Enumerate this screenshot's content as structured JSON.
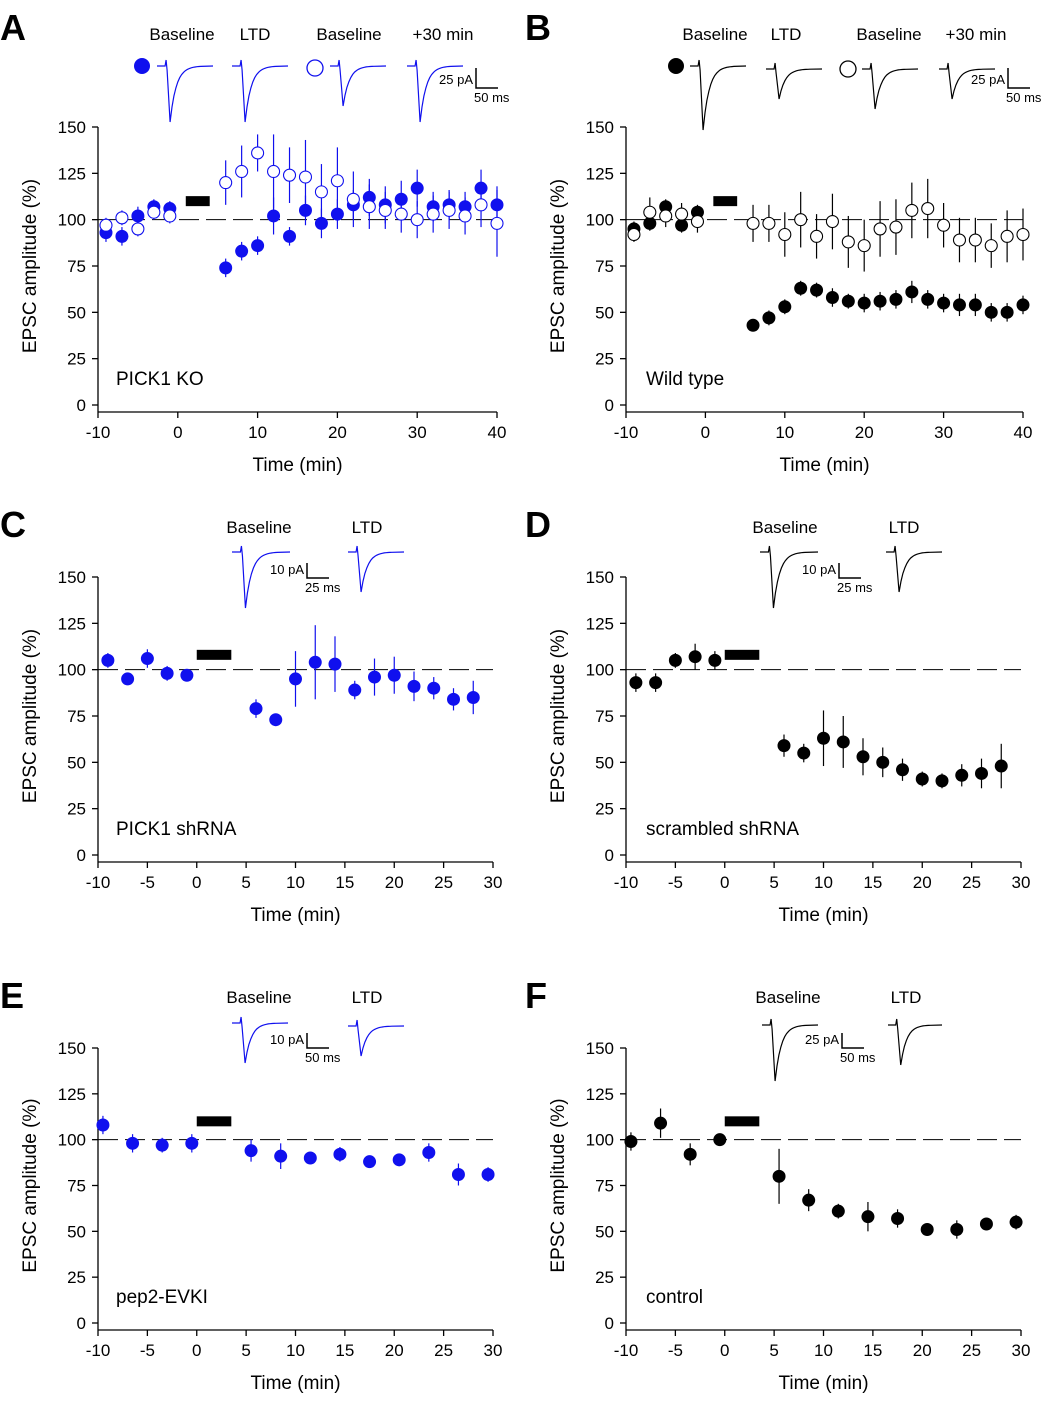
{
  "figure": {
    "y_axis_label": "EPSC amplitude (%)",
    "x_axis_label": "Time (min)"
  },
  "chart_data": [
    {
      "panel_label": "A",
      "type": "scatter",
      "color": "#1010ee",
      "condition_label": "PICK1 KO",
      "xlabel": "Time (min)",
      "ylabel": "EPSC amplitude (%)",
      "xlim": [
        -10,
        40
      ],
      "ylim": [
        0,
        150
      ],
      "xticks": [
        -10,
        0,
        10,
        20,
        30,
        40
      ],
      "yticks": [
        0,
        25,
        50,
        75,
        100,
        125,
        150
      ],
      "baseline_value": 100,
      "induction_bar": [
        1,
        4,
        110
      ],
      "trace_labels": [
        "Baseline",
        "LTD",
        "Baseline",
        "+30 min"
      ],
      "scale_bar": {
        "amplitude": "25 pA",
        "time": "50 ms"
      },
      "series": [
        {
          "name": "filled",
          "marker": "filled",
          "x": [
            -9,
            -7,
            -5,
            -3,
            -1,
            6,
            8,
            10,
            12,
            14,
            16,
            18,
            20,
            22,
            24,
            26,
            28,
            30,
            32,
            34,
            36,
            38,
            40
          ],
          "y": [
            93,
            91,
            102,
            107,
            106,
            74,
            83,
            86,
            102,
            91,
            105,
            98,
            103,
            108,
            112,
            108,
            111,
            117,
            107,
            108,
            107,
            117,
            108
          ],
          "err": [
            5,
            5,
            5,
            4,
            4,
            5,
            5,
            5,
            10,
            5,
            8,
            8,
            8,
            8,
            10,
            10,
            10,
            10,
            8,
            8,
            8,
            10,
            10
          ]
        },
        {
          "name": "open",
          "marker": "open",
          "x": [
            -9,
            -7,
            -5,
            -3,
            -1,
            6,
            8,
            10,
            12,
            14,
            16,
            18,
            20,
            22,
            24,
            26,
            28,
            30,
            32,
            34,
            36,
            38,
            40
          ],
          "y": [
            97,
            101,
            95,
            104,
            102,
            120,
            126,
            136,
            126,
            124,
            123,
            115,
            121,
            111,
            107,
            105,
            103,
            100,
            103,
            105,
            102,
            108,
            98
          ],
          "err": [
            4,
            4,
            4,
            4,
            4,
            12,
            14,
            10,
            20,
            15,
            20,
            15,
            18,
            15,
            12,
            10,
            10,
            10,
            10,
            10,
            10,
            12,
            18
          ]
        }
      ]
    },
    {
      "panel_label": "B",
      "type": "scatter",
      "color": "#000000",
      "condition_label": "Wild type",
      "xlabel": "Time (min)",
      "ylabel": "EPSC amplitude (%)",
      "xlim": [
        -10,
        40
      ],
      "ylim": [
        0,
        150
      ],
      "xticks": [
        -10,
        0,
        10,
        20,
        30,
        40
      ],
      "yticks": [
        0,
        25,
        50,
        75,
        100,
        125,
        150
      ],
      "baseline_value": 100,
      "induction_bar": [
        1,
        4,
        110
      ],
      "trace_labels": [
        "Baseline",
        "LTD",
        "Baseline",
        "+30 min"
      ],
      "scale_bar": {
        "amplitude": "25 pA",
        "time": "50 ms"
      },
      "series": [
        {
          "name": "filled",
          "marker": "filled",
          "x": [
            -9,
            -7,
            -5,
            -3,
            -1,
            6,
            8,
            10,
            12,
            14,
            16,
            18,
            20,
            22,
            24,
            26,
            28,
            30,
            32,
            34,
            36,
            38,
            40
          ],
          "y": [
            95,
            98,
            107,
            97,
            104,
            43,
            47,
            53,
            63,
            62,
            58,
            56,
            55,
            56,
            57,
            61,
            57,
            55,
            54,
            54,
            50,
            50,
            54
          ],
          "err": [
            4,
            4,
            4,
            4,
            4,
            3,
            4,
            4,
            4,
            4,
            5,
            4,
            5,
            5,
            5,
            6,
            5,
            5,
            6,
            6,
            5,
            5,
            5
          ]
        },
        {
          "name": "open",
          "marker": "open",
          "x": [
            -9,
            -7,
            -5,
            -3,
            -1,
            6,
            8,
            10,
            12,
            14,
            16,
            18,
            20,
            22,
            24,
            26,
            28,
            30,
            32,
            34,
            36,
            38,
            40
          ],
          "y": [
            92,
            104,
            102,
            103,
            99,
            98,
            98,
            92,
            100,
            91,
            99,
            88,
            86,
            95,
            96,
            105,
            106,
            97,
            89,
            89,
            86,
            91,
            92
          ],
          "err": [
            4,
            8,
            6,
            6,
            6,
            10,
            10,
            12,
            15,
            12,
            15,
            14,
            14,
            15,
            15,
            15,
            16,
            12,
            12,
            12,
            12,
            14,
            14
          ]
        }
      ]
    },
    {
      "panel_label": "C",
      "type": "scatter",
      "color": "#1010ee",
      "condition_label": "PICK1 shRNA",
      "xlabel": "Time (min)",
      "ylabel": "EPSC amplitude (%)",
      "xlim": [
        -10,
        30
      ],
      "ylim": [
        0,
        150
      ],
      "xticks": [
        -10,
        -5,
        0,
        5,
        10,
        15,
        20,
        25,
        30
      ],
      "yticks": [
        0,
        25,
        50,
        75,
        100,
        125,
        150
      ],
      "baseline_value": 100,
      "induction_bar": [
        0,
        3.5,
        108
      ],
      "trace_labels": [
        "Baseline",
        "LTD"
      ],
      "scale_bar": {
        "amplitude": "10 pA",
        "time": "25 ms"
      },
      "series": [
        {
          "name": "filled",
          "marker": "filled",
          "x": [
            -9,
            -7,
            -5,
            -3,
            -1,
            6,
            8,
            10,
            12,
            14,
            16,
            18,
            20,
            22,
            24,
            26,
            28
          ],
          "y": [
            105,
            95,
            106,
            98,
            97,
            79,
            73,
            95,
            104,
            103,
            89,
            96,
            97,
            91,
            90,
            84,
            85
          ],
          "err": [
            4,
            3,
            5,
            4,
            3,
            5,
            3,
            15,
            20,
            15,
            5,
            10,
            10,
            8,
            6,
            6,
            9
          ]
        }
      ]
    },
    {
      "panel_label": "D",
      "type": "scatter",
      "color": "#000000",
      "condition_label": "scrambled shRNA",
      "xlabel": "Time (min)",
      "ylabel": "EPSC amplitude (%)",
      "xlim": [
        -10,
        30
      ],
      "ylim": [
        0,
        150
      ],
      "xticks": [
        -10,
        -5,
        0,
        5,
        10,
        15,
        20,
        25,
        30
      ],
      "yticks": [
        0,
        25,
        50,
        75,
        100,
        125,
        150
      ],
      "baseline_value": 100,
      "induction_bar": [
        0,
        3.5,
        108
      ],
      "trace_labels": [
        "Baseline",
        "LTD"
      ],
      "scale_bar": {
        "amplitude": "10 pA",
        "time": "25 ms"
      },
      "series": [
        {
          "name": "filled",
          "marker": "filled",
          "x": [
            -9,
            -7,
            -5,
            -3,
            -1,
            6,
            8,
            10,
            12,
            14,
            16,
            18,
            20,
            22,
            24,
            26,
            28
          ],
          "y": [
            93,
            93,
            105,
            107,
            105,
            59,
            55,
            63,
            61,
            53,
            50,
            46,
            41,
            40,
            43,
            44,
            48
          ],
          "err": [
            5,
            5,
            4,
            7,
            5,
            6,
            5,
            15,
            14,
            10,
            8,
            6,
            4,
            4,
            6,
            8,
            12
          ]
        }
      ]
    },
    {
      "panel_label": "E",
      "type": "scatter",
      "color": "#1010ee",
      "condition_label": "pep2-EVKI",
      "xlabel": "Time (min)",
      "ylabel": "EPSC amplitude (%)",
      "xlim": [
        -10,
        30
      ],
      "ylim": [
        0,
        150
      ],
      "xticks": [
        -10,
        -5,
        0,
        5,
        10,
        15,
        20,
        25,
        30
      ],
      "yticks": [
        0,
        25,
        50,
        75,
        100,
        125,
        150
      ],
      "baseline_value": 100,
      "induction_bar": [
        0,
        3.5,
        110
      ],
      "trace_labels": [
        "Baseline",
        "LTD"
      ],
      "scale_bar": {
        "amplitude": "10 pA",
        "time": "50 ms"
      },
      "series": [
        {
          "name": "filled",
          "marker": "filled",
          "x": [
            -9.5,
            -6.5,
            -3.5,
            -0.5,
            5.5,
            8.5,
            11.5,
            14.5,
            17.5,
            20.5,
            23.5,
            26.5,
            29.5
          ],
          "y": [
            108,
            98,
            97,
            98,
            94,
            91,
            90,
            92,
            88,
            89,
            93,
            81,
            81
          ],
          "err": [
            5,
            5,
            4,
            5,
            6,
            7,
            3,
            4,
            3,
            3,
            5,
            6,
            4
          ]
        }
      ]
    },
    {
      "panel_label": "F",
      "type": "scatter",
      "color": "#000000",
      "condition_label": "control",
      "xlabel": "Time (min)",
      "ylabel": "EPSC amplitude (%)",
      "xlim": [
        -10,
        30
      ],
      "ylim": [
        0,
        150
      ],
      "xticks": [
        -10,
        -5,
        0,
        5,
        10,
        15,
        20,
        25,
        30
      ],
      "yticks": [
        0,
        25,
        50,
        75,
        100,
        125,
        150
      ],
      "baseline_value": 100,
      "induction_bar": [
        0,
        3.5,
        110
      ],
      "trace_labels": [
        "Baseline",
        "LTD"
      ],
      "scale_bar": {
        "amplitude": "25 pA",
        "time": "50 ms"
      },
      "series": [
        {
          "name": "filled",
          "marker": "filled",
          "x": [
            -9.5,
            -6.5,
            -3.5,
            -0.5,
            5.5,
            8.5,
            11.5,
            14.5,
            17.5,
            20.5,
            23.5,
            26.5,
            29.5
          ],
          "y": [
            99,
            109,
            92,
            100,
            80,
            67,
            61,
            58,
            57,
            51,
            51,
            54,
            55
          ],
          "err": [
            5,
            8,
            6,
            2,
            15,
            6,
            4,
            8,
            5,
            3,
            5,
            3,
            4
          ]
        }
      ]
    }
  ]
}
